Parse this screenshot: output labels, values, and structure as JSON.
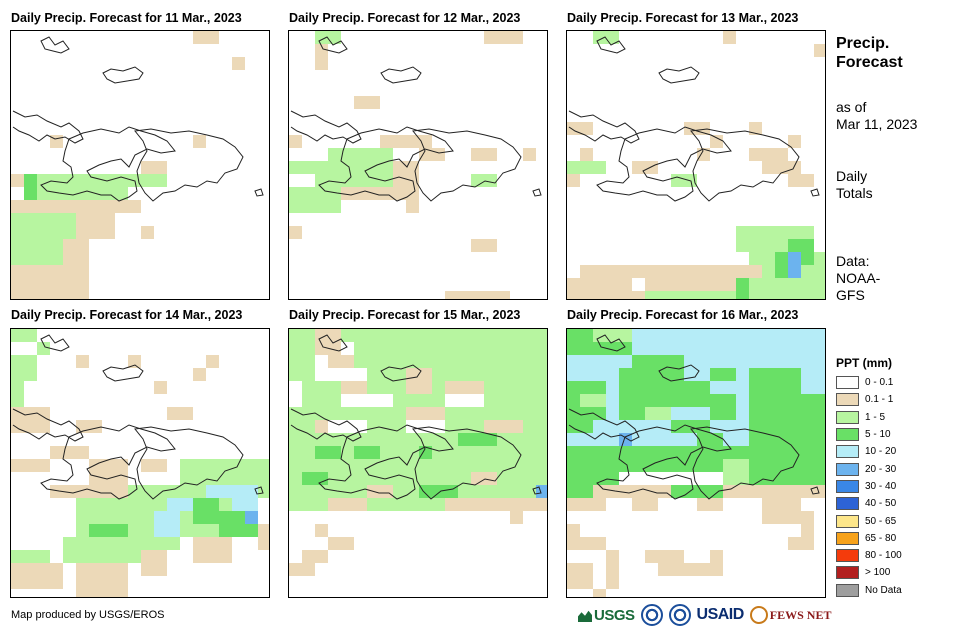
{
  "panels": [
    {
      "title": "Daily Precip. Forecast for 11 Mar., 2023"
    },
    {
      "title": "Daily Precip. Forecast for 12 Mar., 2023"
    },
    {
      "title": "Daily Precip. Forecast for 13 Mar., 2023"
    },
    {
      "title": "Daily Precip. Forecast for 14 Mar., 2023"
    },
    {
      "title": "Daily Precip. Forecast for 15 Mar., 2023"
    },
    {
      "title": "Daily Precip. Forecast for 16 Mar., 2023"
    }
  ],
  "sidebar": {
    "title_line1": "Precip.",
    "title_line2": "Forecast",
    "asof_line1": "as of",
    "asof_line2": "Mar 11, 2023",
    "totals_line1": "Daily",
    "totals_line2": "Totals",
    "data_line1": "Data:",
    "data_line2": "NOAA-",
    "data_line3": "GFS"
  },
  "legend": {
    "title": "PPT (mm)",
    "items": [
      {
        "label": "0 - 0.1",
        "color": "#ffffff"
      },
      {
        "label": "0.1 - 1",
        "color": "#ecd9b8"
      },
      {
        "label": "1 - 5",
        "color": "#b7f5a0"
      },
      {
        "label": "5 - 10",
        "color": "#69e066"
      },
      {
        "label": "10 - 20",
        "color": "#b5ecf7"
      },
      {
        "label": "20 - 30",
        "color": "#6cb3ee"
      },
      {
        "label": "30 - 40",
        "color": "#3a87e6"
      },
      {
        "label": "40 - 50",
        "color": "#2d63d6"
      },
      {
        "label": "50 - 65",
        "color": "#fde68a"
      },
      {
        "label": "65 - 80",
        "color": "#f7a21b"
      },
      {
        "label": "80 - 100",
        "color": "#f43b0c"
      },
      {
        "label": "> 100",
        "color": "#b21f1f"
      },
      {
        "label": "No Data",
        "color": "#9e9e9e"
      }
    ]
  },
  "footer": {
    "credit": "Map produced by USGS/EROS",
    "logo_usgs": "USGS",
    "logo_usaid": "USAID",
    "logo_fews": "FEWS NET"
  }
}
